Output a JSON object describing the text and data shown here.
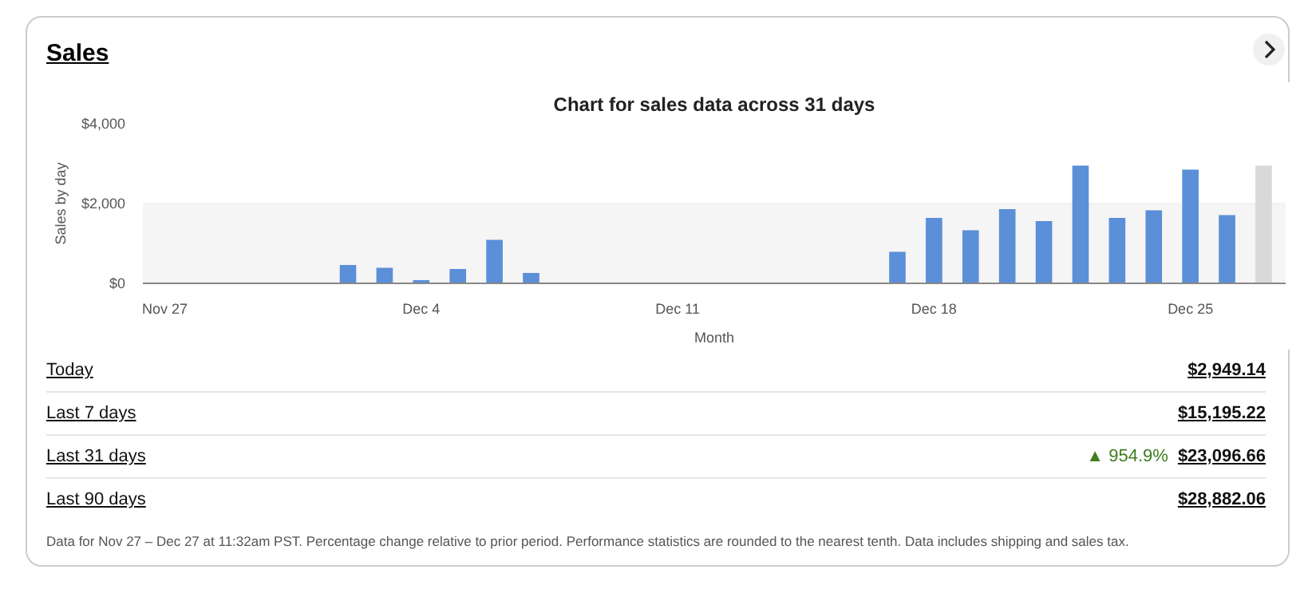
{
  "chart_data": {
    "type": "bar",
    "title": "Chart for sales data across 31 days",
    "xlabel": "Month",
    "ylabel": "Sales by day",
    "categories": [
      "Nov 27",
      null,
      null,
      null,
      null,
      null,
      null,
      "Dec 4",
      null,
      null,
      null,
      null,
      null,
      null,
      "Dec 11",
      null,
      null,
      null,
      null,
      null,
      null,
      "Dec 18",
      null,
      null,
      null,
      null,
      null,
      null,
      "Dec 25",
      null,
      null
    ],
    "values": [
      0,
      0,
      0,
      0,
      0,
      460,
      390,
      80,
      360,
      1090,
      260,
      0,
      0,
      0,
      0,
      0,
      0,
      0,
      0,
      0,
      790,
      1640,
      1330,
      1860,
      1560,
      2950,
      1640,
      1830,
      2850,
      1710,
      2950
    ],
    "colors": [
      "#5b8fd8",
      "#5b8fd8",
      "#5b8fd8",
      "#5b8fd8",
      "#5b8fd8",
      "#5b8fd8",
      "#5b8fd8",
      "#5b8fd8",
      "#5b8fd8",
      "#5b8fd8",
      "#5b8fd8",
      "#5b8fd8",
      "#5b8fd8",
      "#5b8fd8",
      "#5b8fd8",
      "#5b8fd8",
      "#5b8fd8",
      "#5b8fd8",
      "#5b8fd8",
      "#5b8fd8",
      "#5b8fd8",
      "#5b8fd8",
      "#5b8fd8",
      "#5b8fd8",
      "#5b8fd8",
      "#5b8fd8",
      "#5b8fd8",
      "#5b8fd8",
      "#5b8fd8",
      "#5b8fd8",
      "#d9d9d9"
    ],
    "ylim": [
      0,
      4000
    ],
    "yticks": [
      {
        "value": 0,
        "label": "$0"
      },
      {
        "value": 2000,
        "label": "$2,000"
      },
      {
        "value": 4000,
        "label": "$4,000"
      }
    ],
    "grid": "y",
    "bands": [
      {
        "axis": "y",
        "from": 0,
        "to": 2000,
        "color": "#f5f5f5"
      }
    ],
    "annotations": [
      "Sales",
      "Today",
      "$2,949.14",
      "Last 7 days",
      "$15,195.22",
      "Last 31 days",
      "▲ 954.9%",
      "$23,096.66",
      "Last 90 days",
      "$28,882.06",
      "Data for Nov 27 – Dec 27 at 11:32am PST. Percentage change relative to prior period. Performance statistics are rounded to the nearest tenth. Data includes shipping and sales tax."
    ]
  }
}
